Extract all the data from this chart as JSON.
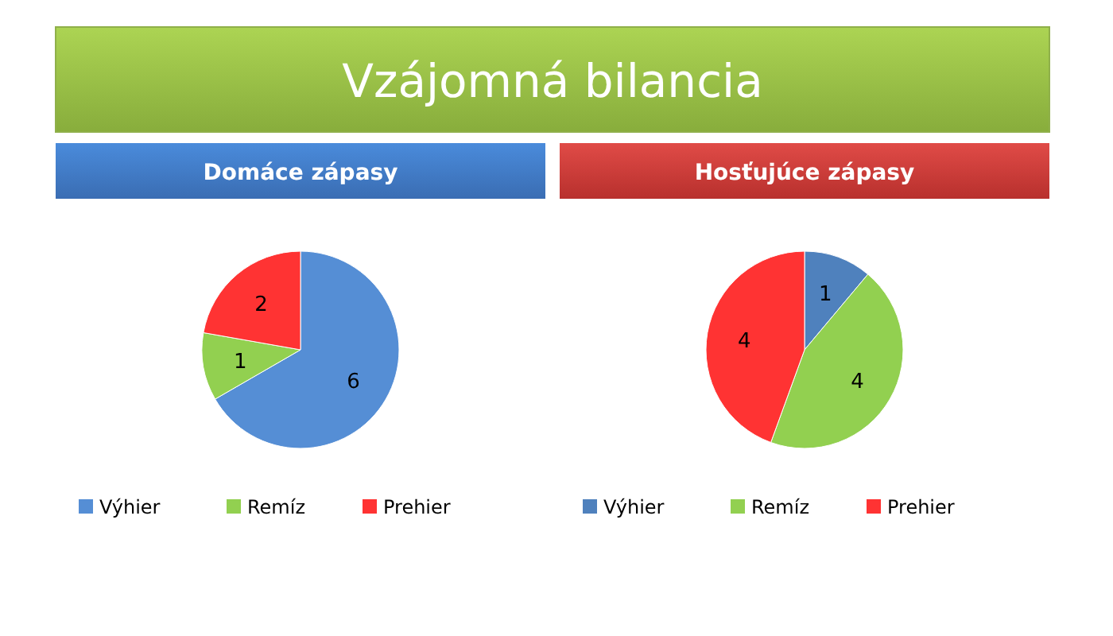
{
  "chart_data": [
    {
      "type": "other",
      "title": "Vzájomná bilancia"
    },
    {
      "type": "pie",
      "title": "Domáce zápasy",
      "categories": [
        "Výhier",
        "Remíz",
        "Prehier"
      ],
      "values": [
        6,
        1,
        2
      ],
      "colors": [
        "#558ed5",
        "#92d050",
        "#ff3333"
      ],
      "data_labels": true,
      "legend": "bottom"
    },
    {
      "type": "pie",
      "title": "Hosťujúce zápasy",
      "categories": [
        "Výhier",
        "Remíz",
        "Prehier"
      ],
      "values": [
        1,
        4,
        4
      ],
      "colors": [
        "#4f81bd",
        "#92d050",
        "#ff3333"
      ],
      "data_labels": true,
      "legend": "bottom"
    }
  ]
}
